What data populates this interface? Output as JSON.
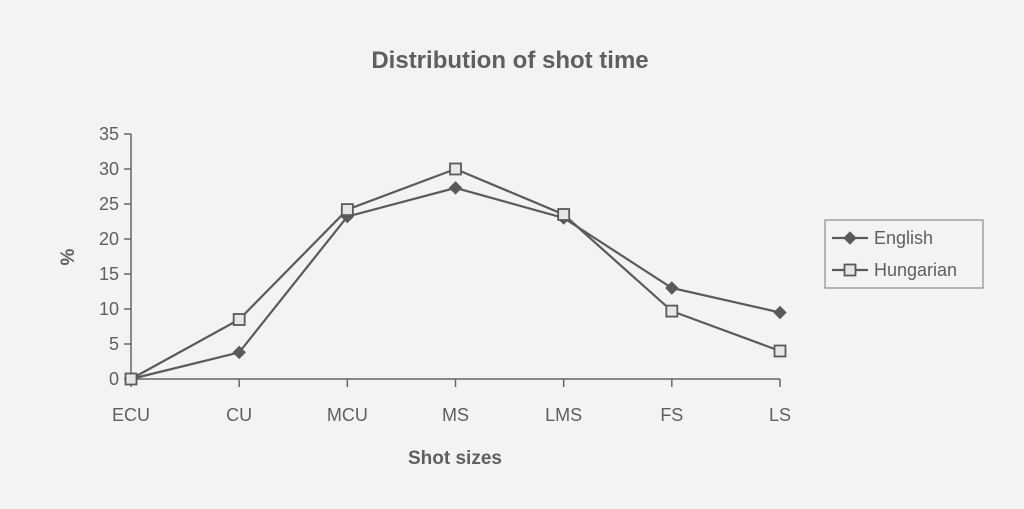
{
  "chart_data": {
    "type": "line",
    "title": "Distribution of shot time",
    "xlabel": "Shot sizes",
    "ylabel": "%",
    "categories": [
      "ECU",
      "CU",
      "MCU",
      "MS",
      "LMS",
      "FS",
      "LS"
    ],
    "ylim": [
      0,
      35
    ],
    "yticks": [
      0,
      5,
      10,
      15,
      20,
      25,
      30,
      35
    ],
    "grid": false,
    "legend_position": "right",
    "series": [
      {
        "name": "English",
        "marker": "diamond-filled",
        "color": "#5a5a5a",
        "values": [
          0,
          3.8,
          23.2,
          27.3,
          23.0,
          13.0,
          9.5
        ]
      },
      {
        "name": "Hungarian",
        "marker": "square-open",
        "color": "#5a5a5a",
        "values": [
          0,
          8.5,
          24.2,
          30.0,
          23.5,
          9.7,
          4.0
        ]
      }
    ]
  }
}
